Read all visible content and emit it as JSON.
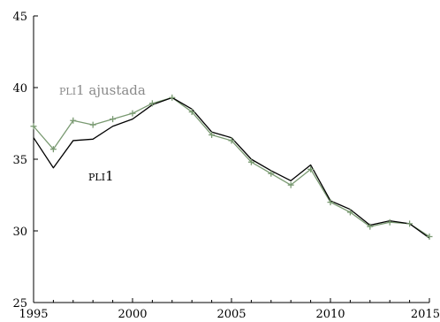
{
  "chart_data": {
    "type": "line",
    "title": "",
    "xlabel": "",
    "ylabel": "",
    "xlim": [
      1995,
      2015
    ],
    "ylim": [
      25,
      45
    ],
    "x_ticks": [
      1995,
      2000,
      2005,
      2010,
      2015
    ],
    "x_tick_labels": [
      "1995",
      "2000",
      "2005",
      "2010",
      "2015"
    ],
    "y_ticks": [
      25,
      30,
      35,
      40,
      45
    ],
    "y_tick_labels": [
      "25",
      "30",
      "35",
      "40",
      "45"
    ],
    "grid": false,
    "legend": "inline labels",
    "x": [
      1995,
      1996,
      1997,
      1998,
      1999,
      2000,
      2001,
      2002,
      2003,
      2004,
      2005,
      2006,
      2007,
      2008,
      2009,
      2010,
      2011,
      2012,
      2013,
      2014,
      2015
    ],
    "series": [
      {
        "key": "adjusted",
        "name": "PLI1 ajustada",
        "label_parts": [
          "pli",
          "1 ajustada"
        ],
        "color": "#7a9a72",
        "markers": true,
        "values": [
          37.3,
          35.7,
          37.7,
          37.4,
          37.8,
          38.2,
          38.9,
          39.3,
          38.3,
          36.7,
          36.3,
          34.8,
          34.0,
          33.2,
          34.3,
          32.0,
          31.3,
          30.3,
          30.6,
          30.5,
          29.6
        ]
      },
      {
        "key": "base",
        "name": "PLI1",
        "label_parts": [
          "pli",
          "1"
        ],
        "color": "#000000",
        "markers": false,
        "values": [
          36.5,
          34.4,
          36.3,
          36.4,
          37.3,
          37.8,
          38.8,
          39.3,
          38.5,
          36.9,
          36.5,
          35.0,
          34.2,
          33.5,
          34.6,
          32.1,
          31.5,
          30.4,
          30.7,
          30.5,
          29.5
        ]
      }
    ]
  }
}
